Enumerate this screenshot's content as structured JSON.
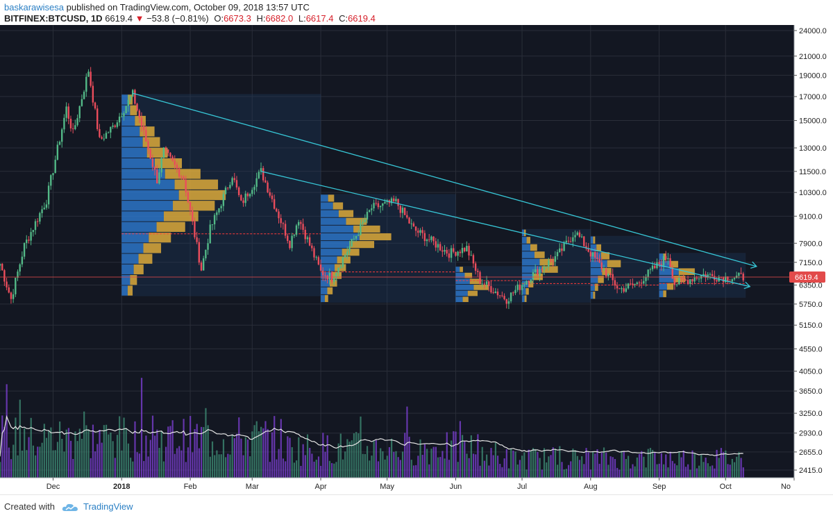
{
  "header": {
    "username": "baskarawisesa",
    "published_text": "published on TradingView.com, October 09, 2018 13:57 UTC",
    "symbol": "BITFINEX:BTCUSD, 1D",
    "last": "6619.4",
    "change": "−53.8 (−0.81%)",
    "open_label": "O:",
    "open": "6673.3",
    "high_label": "H:",
    "high": "6682.0",
    "low_label": "L:",
    "low": "6617.4",
    "close_label": "C:",
    "close": "6619.4"
  },
  "footer": {
    "created_with": "Created with",
    "brand": "TradingView"
  },
  "colors": {
    "bg": "#131722",
    "up": "#53b987",
    "down": "#eb4d5c",
    "trend": "#37c6d6",
    "vp_blue": "#2f7fd8",
    "vp_yellow": "#e8b23a",
    "vol_purple": "#7b3fd0",
    "vol_green": "#3d8a73",
    "price_line": "#e24a4a",
    "grid": "#2a2e39",
    "axis_bg": "#ffffff"
  },
  "chart_data": {
    "type": "candlestick",
    "symbol": "BITFINEX:BTCUSD",
    "interval": "1D",
    "last_price": 6619.4,
    "last_price_label": "6619.4",
    "y_axis_log": true,
    "y_ticks": [
      "24000.0",
      "21000.0",
      "19000.0",
      "17000.0",
      "15000.0",
      "13000.0",
      "11500.0",
      "10300.0",
      "9100.0",
      "7900.0",
      "7150.0",
      "6350.0",
      "5750.0",
      "5150.0",
      "4550.0",
      "4050.0",
      "3650.0",
      "3250.0",
      "2930.0",
      "2655.0",
      "2415.0"
    ],
    "x_ticks": [
      "Dec",
      "2018",
      "Feb",
      "Mar",
      "Apr",
      "May",
      "Jun",
      "Jul",
      "Aug",
      "Sep",
      "Oct",
      "No"
    ],
    "x_range": [
      "2017-11-07",
      "2018-11-01"
    ],
    "grid": true,
    "anchors": [
      [
        "2017-11-07",
        7100
      ],
      [
        "2017-11-12",
        5900
      ],
      [
        "2017-11-18",
        7800
      ],
      [
        "2017-11-28",
        9900
      ],
      [
        "2017-12-07",
        16000
      ],
      [
        "2017-12-10",
        14000
      ],
      [
        "2017-12-17",
        19500
      ],
      [
        "2017-12-22",
        13500
      ],
      [
        "2017-12-28",
        14500
      ],
      [
        "2018-01-06",
        17200
      ],
      [
        "2018-01-17",
        11000
      ],
      [
        "2018-01-20",
        12800
      ],
      [
        "2018-01-29",
        11100
      ],
      [
        "2018-02-06",
        6900
      ],
      [
        "2018-02-10",
        8500
      ],
      [
        "2018-02-14",
        9500
      ],
      [
        "2018-02-20",
        11300
      ],
      [
        "2018-02-24",
        9700
      ],
      [
        "2018-03-05",
        11500
      ],
      [
        "2018-03-18",
        7900
      ],
      [
        "2018-03-22",
        9000
      ],
      [
        "2018-04-01",
        6800
      ],
      [
        "2018-04-06",
        6600
      ],
      [
        "2018-04-24",
        9500
      ],
      [
        "2018-05-05",
        9800
      ],
      [
        "2018-05-13",
        8500
      ],
      [
        "2018-05-29",
        7500
      ],
      [
        "2018-06-06",
        7700
      ],
      [
        "2018-06-12",
        6500
      ],
      [
        "2018-06-24",
        5900
      ],
      [
        "2018-07-04",
        6600
      ],
      [
        "2018-07-17",
        7400
      ],
      [
        "2018-07-25",
        8400
      ],
      [
        "2018-08-01",
        7500
      ],
      [
        "2018-08-14",
        6200
      ],
      [
        "2018-08-22",
        6400
      ],
      [
        "2018-09-05",
        7400
      ],
      [
        "2018-09-08",
        6400
      ],
      [
        "2018-09-21",
        6700
      ],
      [
        "2018-10-01",
        6600
      ],
      [
        "2018-10-09",
        6619
      ]
    ],
    "trendlines": [
      {
        "from": [
          "2018-01-06",
          17300
        ],
        "to": [
          "2018-10-15",
          7000
        ]
      },
      {
        "from": [
          "2018-03-05",
          11500
        ],
        "to": [
          "2018-10-12",
          6300
        ]
      }
    ],
    "volume_axis_note": "volume histogram with moving average",
    "volume_profile_months": [
      "2018-01",
      "2018-04",
      "2018-06",
      "2018-07",
      "2018-08"
    ]
  }
}
